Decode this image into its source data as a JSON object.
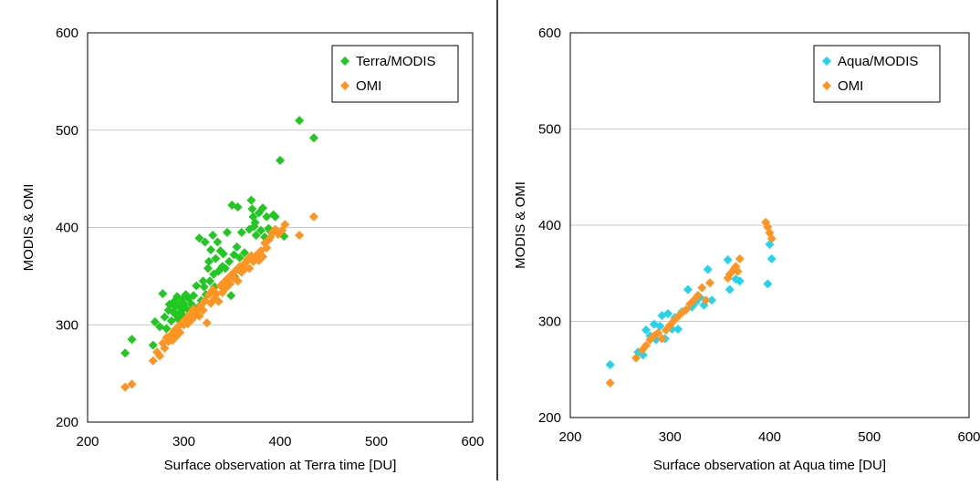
{
  "colors": {
    "terra_modis": "#22c822",
    "aqua_modis": "#22d4ee",
    "omi": "#ff9422",
    "grid": "#c8c8c8",
    "frame": "#000000"
  },
  "chart_data": [
    {
      "type": "scatter",
      "title": "",
      "xlabel": "Surface observation at Terra time [DU]",
      "ylabel": "MODIS & OMI",
      "xlim": [
        200,
        600
      ],
      "ylim": [
        200,
        600
      ],
      "x_ticks": [
        "200",
        "300",
        "400",
        "500",
        "600"
      ],
      "y_ticks": [
        "200",
        "300",
        "400",
        "500",
        "600"
      ],
      "grid": "horizontal",
      "legend_position": "top-right",
      "marker": "diamond",
      "series": [
        {
          "name": "Terra/MODIS",
          "color": "#22c822",
          "x": [
            239,
            246,
            268,
            270,
            275,
            278,
            280,
            282,
            284,
            285,
            287,
            289,
            290,
            291,
            292,
            293,
            294,
            295,
            296,
            297,
            298,
            299,
            300,
            301,
            302,
            303,
            305,
            306,
            308,
            310,
            312,
            313,
            315,
            316,
            318,
            320,
            321,
            322,
            323,
            325,
            326,
            327,
            328,
            330,
            331,
            332,
            333,
            335,
            336,
            338,
            340,
            341,
            343,
            345,
            347,
            349,
            350,
            352,
            353,
            355,
            356,
            358,
            360,
            363,
            365,
            368,
            370,
            371,
            372,
            373,
            374,
            375,
            376,
            378,
            380,
            382,
            384,
            386,
            388,
            390,
            393,
            395,
            400,
            404,
            420,
            435
          ],
          "y": [
            271,
            285,
            279,
            303,
            298,
            332,
            308,
            296,
            315,
            321,
            304,
            313,
            324,
            318,
            310,
            329,
            306,
            320,
            300,
            314,
            326,
            310,
            322,
            318,
            331,
            305,
            327,
            314,
            321,
            330,
            310,
            340,
            318,
            389,
            325,
            345,
            339,
            385,
            331,
            358,
            365,
            345,
            377,
            392,
            352,
            339,
            368,
            385,
            355,
            376,
            360,
            373,
            358,
            395,
            365,
            330,
            423,
            372,
            349,
            380,
            421,
            369,
            395,
            374,
            365,
            398,
            428,
            419,
            411,
            401,
            405,
            392,
            372,
            415,
            397,
            420,
            390,
            411,
            399,
            396,
            413,
            411,
            469,
            391,
            510,
            492
          ]
        },
        {
          "name": "OMI",
          "color": "#ff9422",
          "x": [
            239,
            246,
            268,
            272,
            275,
            278,
            280,
            282,
            284,
            286,
            288,
            290,
            292,
            294,
            296,
            298,
            300,
            302,
            304,
            306,
            308,
            310,
            312,
            314,
            316,
            318,
            320,
            322,
            324,
            326,
            328,
            330,
            332,
            334,
            336,
            338,
            340,
            342,
            344,
            346,
            348,
            350,
            352,
            354,
            356,
            358,
            360,
            362,
            364,
            366,
            368,
            370,
            372,
            374,
            376,
            378,
            380,
            382,
            384,
            386,
            388,
            390,
            392,
            395,
            398,
            402,
            405,
            420,
            435
          ],
          "y": [
            236,
            239,
            263,
            272,
            268,
            281,
            276,
            287,
            283,
            289,
            284,
            294,
            288,
            298,
            292,
            302,
            300,
            306,
            301,
            311,
            305,
            316,
            310,
            315,
            309,
            320,
            315,
            325,
            302,
            331,
            322,
            336,
            327,
            332,
            324,
            340,
            333,
            344,
            338,
            348,
            342,
            352,
            348,
            356,
            345,
            360,
            354,
            362,
            358,
            367,
            358,
            371,
            365,
            369,
            372,
            366,
            376,
            370,
            384,
            379,
            387,
            390,
            395,
            398,
            393,
            397,
            403,
            392,
            411
          ]
        }
      ]
    },
    {
      "type": "scatter",
      "title": "",
      "xlabel": "Surface observation at Aqua time [DU]",
      "ylabel": "MODIS & OMI",
      "xlim": [
        200,
        600
      ],
      "ylim": [
        200,
        600
      ],
      "x_ticks": [
        "200",
        "300",
        "400",
        "500",
        "600"
      ],
      "y_ticks": [
        "200",
        "300",
        "400",
        "500",
        "600"
      ],
      "grid": "horizontal",
      "legend_position": "top-right",
      "marker": "diamond",
      "series": [
        {
          "name": "Aqua/MODIS",
          "color": "#22d4ee",
          "x": [
            240,
            268,
            273,
            276,
            280,
            284,
            286,
            290,
            292,
            295,
            298,
            302,
            305,
            308,
            312,
            318,
            322,
            326,
            330,
            334,
            338,
            342,
            358,
            360,
            366,
            370,
            398,
            400,
            402
          ],
          "y": [
            255,
            268,
            265,
            291,
            285,
            297,
            281,
            295,
            306,
            282,
            308,
            292,
            304,
            292,
            310,
            333,
            315,
            320,
            325,
            317,
            354,
            322,
            364,
            333,
            344,
            342,
            339,
            380,
            365
          ]
        },
        {
          "name": "OMI",
          "color": "#ff9422",
          "x": [
            240,
            266,
            272,
            276,
            280,
            284,
            288,
            292,
            296,
            300,
            304,
            308,
            312,
            316,
            320,
            324,
            328,
            332,
            336,
            340,
            358,
            360,
            364,
            366,
            368,
            370,
            396,
            398,
            400,
            402
          ],
          "y": [
            236,
            262,
            270,
            275,
            281,
            285,
            288,
            282,
            291,
            296,
            301,
            305,
            309,
            312,
            318,
            322,
            327,
            335,
            322,
            340,
            345,
            349,
            354,
            357,
            352,
            365,
            403,
            398,
            392,
            386
          ]
        }
      ]
    }
  ]
}
